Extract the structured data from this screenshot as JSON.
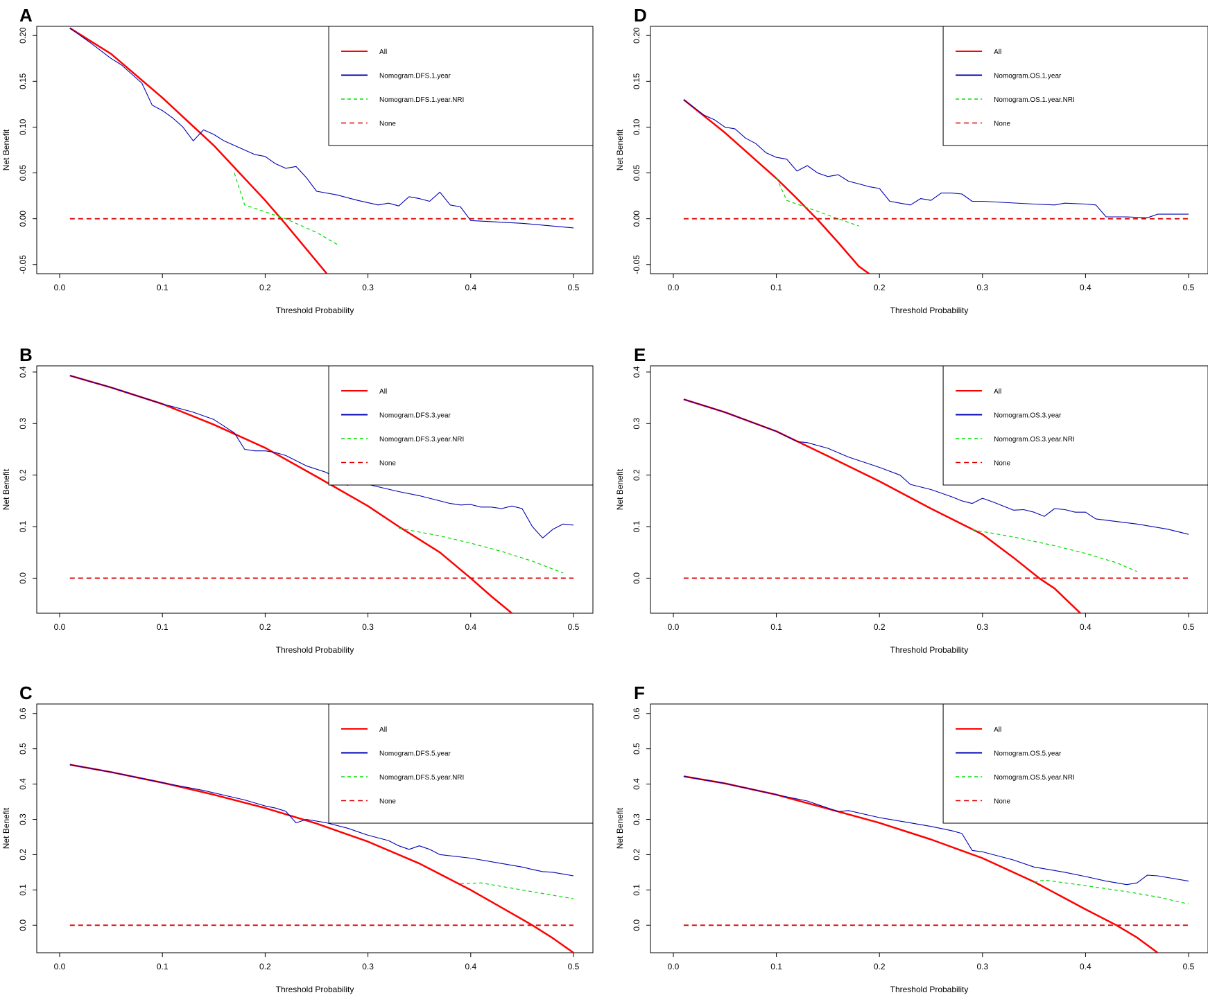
{
  "colors": {
    "all": "#ff0000",
    "model": "#0000b0",
    "nri": "#00dd00",
    "none": "#dd0000",
    "axis": "#000000"
  },
  "chart_data": [
    {
      "panel": "A",
      "type": "line",
      "xlabel": "Threshold Probability",
      "ylabel": "Net Benefit",
      "xlim": [
        0.0,
        0.5
      ],
      "ylim": [
        -0.06,
        0.21
      ],
      "xticks": [
        "0.0",
        "0.1",
        "0.2",
        "0.3",
        "0.4",
        "0.5"
      ],
      "yticks": [
        "-0.05",
        "0.00",
        "0.05",
        "0.10",
        "0.15",
        "0.20"
      ],
      "legend_position": "top-right",
      "series": [
        {
          "name": "All",
          "style": "all",
          "x": [
            0.01,
            0.05,
            0.1,
            0.15,
            0.2,
            0.22,
            0.24,
            0.26
          ],
          "y": [
            0.208,
            0.18,
            0.132,
            0.08,
            0.02,
            -0.006,
            -0.033,
            -0.06
          ]
        },
        {
          "name": "Nomogram.DFS.1.year",
          "style": "model",
          "x": [
            0.01,
            0.03,
            0.05,
            0.06,
            0.08,
            0.09,
            0.1,
            0.11,
            0.12,
            0.13,
            0.14,
            0.15,
            0.16,
            0.17,
            0.18,
            0.19,
            0.2,
            0.21,
            0.22,
            0.23,
            0.24,
            0.25,
            0.27,
            0.29,
            0.31,
            0.32,
            0.33,
            0.34,
            0.35,
            0.36,
            0.37,
            0.38,
            0.39,
            0.4,
            0.45,
            0.5
          ],
          "y": [
            0.208,
            0.192,
            0.175,
            0.168,
            0.148,
            0.124,
            0.118,
            0.11,
            0.1,
            0.085,
            0.097,
            0.092,
            0.085,
            0.08,
            0.075,
            0.07,
            0.068,
            0.06,
            0.055,
            0.057,
            0.045,
            0.03,
            0.026,
            0.02,
            0.015,
            0.017,
            0.014,
            0.024,
            0.022,
            0.019,
            0.029,
            0.015,
            0.013,
            -0.002,
            -0.005,
            -0.01
          ]
        },
        {
          "name": "Nomogram.DFS.1.year.NRI",
          "style": "nri",
          "x": [
            0.17,
            0.18,
            0.22,
            0.25,
            0.27
          ],
          "y": [
            0.05,
            0.015,
            0.0,
            -0.015,
            -0.028
          ]
        },
        {
          "name": "None",
          "style": "none",
          "x": [
            0.01,
            0.5
          ],
          "y": [
            0.0,
            0.0
          ]
        }
      ]
    },
    {
      "panel": "B",
      "type": "line",
      "xlabel": "Threshold Probability",
      "ylabel": "Net Benefit",
      "xlim": [
        0.0,
        0.5
      ],
      "ylim": [
        -0.068,
        0.412
      ],
      "xticks": [
        "0.0",
        "0.1",
        "0.2",
        "0.3",
        "0.4",
        "0.5"
      ],
      "yticks": [
        "0.0",
        "0.1",
        "0.2",
        "0.3",
        "0.4"
      ],
      "legend_position": "top-right",
      "series": [
        {
          "name": "All",
          "style": "all",
          "x": [
            0.01,
            0.05,
            0.1,
            0.15,
            0.2,
            0.25,
            0.3,
            0.33,
            0.35,
            0.37,
            0.4,
            0.42,
            0.44
          ],
          "y": [
            0.393,
            0.37,
            0.338,
            0.298,
            0.253,
            0.197,
            0.14,
            0.1,
            0.075,
            0.05,
            0.0,
            -0.035,
            -0.068
          ]
        },
        {
          "name": "Nomogram.DFS.3.year",
          "style": "model",
          "x": [
            0.01,
            0.05,
            0.1,
            0.11,
            0.13,
            0.15,
            0.17,
            0.18,
            0.19,
            0.2,
            0.21,
            0.22,
            0.24,
            0.26,
            0.27,
            0.28,
            0.29,
            0.3,
            0.33,
            0.35,
            0.37,
            0.38,
            0.39,
            0.4,
            0.41,
            0.42,
            0.43,
            0.44,
            0.45,
            0.46,
            0.47,
            0.48,
            0.49,
            0.5
          ],
          "y": [
            0.393,
            0.37,
            0.338,
            0.333,
            0.322,
            0.308,
            0.282,
            0.25,
            0.247,
            0.247,
            0.244,
            0.238,
            0.218,
            0.205,
            0.19,
            0.18,
            0.19,
            0.182,
            0.168,
            0.16,
            0.15,
            0.145,
            0.142,
            0.143,
            0.138,
            0.138,
            0.135,
            0.14,
            0.135,
            0.1,
            0.078,
            0.095,
            0.105,
            0.103
          ]
        },
        {
          "name": "Nomogram.DFS.3.year.NRI",
          "style": "nri",
          "x": [
            0.33,
            0.37,
            0.4,
            0.43,
            0.46,
            0.49
          ],
          "y": [
            0.097,
            0.082,
            0.068,
            0.052,
            0.033,
            0.01
          ]
        },
        {
          "name": "None",
          "style": "none",
          "x": [
            0.01,
            0.5
          ],
          "y": [
            0.0,
            0.0
          ]
        }
      ]
    },
    {
      "panel": "C",
      "type": "line",
      "xlabel": "Threshold Probability",
      "ylabel": "Net Benefit",
      "xlim": [
        0.0,
        0.5
      ],
      "ylim": [
        -0.078,
        0.627
      ],
      "xticks": [
        "0.0",
        "0.1",
        "0.2",
        "0.3",
        "0.4",
        "0.5"
      ],
      "yticks": [
        "0.0",
        "0.1",
        "0.2",
        "0.3",
        "0.4",
        "0.5",
        "0.6"
      ],
      "legend_position": "top-right",
      "series": [
        {
          "name": "All",
          "style": "all",
          "x": [
            0.01,
            0.05,
            0.1,
            0.15,
            0.2,
            0.25,
            0.3,
            0.35,
            0.4,
            0.43,
            0.46,
            0.48,
            0.5
          ],
          "y": [
            0.455,
            0.434,
            0.404,
            0.37,
            0.332,
            0.288,
            0.237,
            0.175,
            0.1,
            0.05,
            0.0,
            -0.037,
            -0.078
          ]
        },
        {
          "name": "Nomogram.DFS.5.year",
          "style": "model",
          "x": [
            0.01,
            0.05,
            0.1,
            0.14,
            0.18,
            0.2,
            0.21,
            0.22,
            0.23,
            0.24,
            0.26,
            0.28,
            0.3,
            0.32,
            0.33,
            0.34,
            0.35,
            0.36,
            0.37,
            0.4,
            0.43,
            0.45,
            0.46,
            0.47,
            0.48,
            0.49,
            0.5
          ],
          "y": [
            0.455,
            0.434,
            0.404,
            0.382,
            0.355,
            0.338,
            0.332,
            0.323,
            0.29,
            0.3,
            0.29,
            0.275,
            0.255,
            0.24,
            0.225,
            0.215,
            0.225,
            0.215,
            0.2,
            0.19,
            0.175,
            0.165,
            0.158,
            0.152,
            0.15,
            0.145,
            0.14
          ]
        },
        {
          "name": "Nomogram.DFS.5.year.NRI",
          "style": "nri",
          "x": [
            0.39,
            0.41,
            0.43,
            0.45,
            0.47,
            0.5
          ],
          "y": [
            0.118,
            0.12,
            0.11,
            0.1,
            0.09,
            0.075
          ]
        },
        {
          "name": "None",
          "style": "none",
          "x": [
            0.01,
            0.5
          ],
          "y": [
            0.0,
            0.0
          ]
        }
      ]
    },
    {
      "panel": "D",
      "type": "line",
      "xlabel": "Threshold Probability",
      "ylabel": "Net Benefit",
      "xlim": [
        0.0,
        0.5
      ],
      "ylim": [
        -0.06,
        0.21
      ],
      "xticks": [
        "0.0",
        "0.1",
        "0.2",
        "0.3",
        "0.4",
        "0.5"
      ],
      "yticks": [
        "-0.05",
        "0.00",
        "0.05",
        "0.10",
        "0.15",
        "0.20"
      ],
      "legend_position": "top-right",
      "series": [
        {
          "name": "All",
          "style": "all",
          "x": [
            0.01,
            0.05,
            0.1,
            0.12,
            0.14,
            0.16,
            0.18,
            0.19
          ],
          "y": [
            0.13,
            0.094,
            0.044,
            0.022,
            -0.001,
            -0.026,
            -0.052,
            -0.06
          ]
        },
        {
          "name": "Nomogram.OS.1.year",
          "style": "model",
          "x": [
            0.01,
            0.03,
            0.04,
            0.05,
            0.06,
            0.07,
            0.08,
            0.09,
            0.1,
            0.11,
            0.12,
            0.13,
            0.14,
            0.15,
            0.16,
            0.17,
            0.18,
            0.19,
            0.2,
            0.21,
            0.22,
            0.23,
            0.24,
            0.25,
            0.26,
            0.27,
            0.28,
            0.29,
            0.3,
            0.35,
            0.37,
            0.38,
            0.4,
            0.41,
            0.42,
            0.44,
            0.46,
            0.47,
            0.5
          ],
          "y": [
            0.13,
            0.113,
            0.108,
            0.1,
            0.098,
            0.088,
            0.082,
            0.072,
            0.067,
            0.065,
            0.052,
            0.058,
            0.05,
            0.046,
            0.048,
            0.041,
            0.038,
            0.035,
            0.033,
            0.019,
            0.017,
            0.015,
            0.022,
            0.02,
            0.028,
            0.028,
            0.027,
            0.019,
            0.019,
            0.016,
            0.015,
            0.017,
            0.016,
            0.015,
            0.002,
            0.002,
            0.001,
            0.005,
            0.005
          ]
        },
        {
          "name": "Nomogram.OS.1.year.NRI",
          "style": "nri",
          "x": [
            0.1,
            0.11,
            0.14,
            0.16,
            0.18
          ],
          "y": [
            0.045,
            0.02,
            0.008,
            0.0,
            -0.008
          ]
        },
        {
          "name": "None",
          "style": "none",
          "x": [
            0.01,
            0.5
          ],
          "y": [
            0.0,
            0.0
          ]
        }
      ]
    },
    {
      "panel": "E",
      "type": "line",
      "xlabel": "Threshold Probability",
      "ylabel": "Net Benefit",
      "xlim": [
        0.0,
        0.5
      ],
      "ylim": [
        -0.068,
        0.412
      ],
      "xticks": [
        "0.0",
        "0.1",
        "0.2",
        "0.3",
        "0.4",
        "0.5"
      ],
      "yticks": [
        "0.0",
        "0.1",
        "0.2",
        "0.3",
        "0.4"
      ],
      "legend_position": "top-right",
      "series": [
        {
          "name": "All",
          "style": "all",
          "x": [
            0.01,
            0.05,
            0.1,
            0.15,
            0.2,
            0.25,
            0.3,
            0.33,
            0.355,
            0.37,
            0.395
          ],
          "y": [
            0.347,
            0.322,
            0.285,
            0.237,
            0.188,
            0.135,
            0.085,
            0.04,
            0.0,
            -0.02,
            -0.068
          ]
        },
        {
          "name": "Nomogram.OS.3.year",
          "style": "model",
          "x": [
            0.01,
            0.05,
            0.1,
            0.12,
            0.13,
            0.15,
            0.17,
            0.2,
            0.22,
            0.23,
            0.25,
            0.27,
            0.28,
            0.29,
            0.3,
            0.31,
            0.32,
            0.33,
            0.34,
            0.35,
            0.36,
            0.37,
            0.38,
            0.39,
            0.4,
            0.41,
            0.45,
            0.48,
            0.5
          ],
          "y": [
            0.347,
            0.322,
            0.285,
            0.265,
            0.263,
            0.252,
            0.235,
            0.215,
            0.2,
            0.182,
            0.172,
            0.158,
            0.15,
            0.145,
            0.155,
            0.148,
            0.14,
            0.132,
            0.133,
            0.128,
            0.12,
            0.135,
            0.133,
            0.128,
            0.128,
            0.115,
            0.105,
            0.095,
            0.085
          ]
        },
        {
          "name": "Nomogram.OS.3.year.NRI",
          "style": "nri",
          "x": [
            0.29,
            0.33,
            0.37,
            0.4,
            0.43,
            0.45
          ],
          "y": [
            0.094,
            0.08,
            0.063,
            0.048,
            0.03,
            0.013
          ]
        },
        {
          "name": "None",
          "style": "none",
          "x": [
            0.01,
            0.5
          ],
          "y": [
            0.0,
            0.0
          ]
        }
      ]
    },
    {
      "panel": "F",
      "type": "line",
      "xlabel": "Threshold Probability",
      "ylabel": "Net Benefit",
      "xlim": [
        0.0,
        0.5
      ],
      "ylim": [
        -0.078,
        0.627
      ],
      "xticks": [
        "0.0",
        "0.1",
        "0.2",
        "0.3",
        "0.4",
        "0.5"
      ],
      "yticks": [
        "0.0",
        "0.1",
        "0.2",
        "0.3",
        "0.4",
        "0.5",
        "0.6"
      ],
      "legend_position": "top-right",
      "series": [
        {
          "name": "All",
          "style": "all",
          "x": [
            0.01,
            0.05,
            0.1,
            0.15,
            0.2,
            0.25,
            0.3,
            0.35,
            0.4,
            0.43,
            0.45,
            0.47
          ],
          "y": [
            0.422,
            0.402,
            0.37,
            0.33,
            0.29,
            0.243,
            0.19,
            0.123,
            0.045,
            0.0,
            -0.035,
            -0.078
          ]
        },
        {
          "name": "Nomogram.OS.5.year",
          "style": "model",
          "x": [
            0.01,
            0.05,
            0.1,
            0.13,
            0.16,
            0.17,
            0.2,
            0.23,
            0.25,
            0.27,
            0.28,
            0.29,
            0.3,
            0.33,
            0.35,
            0.36,
            0.38,
            0.4,
            0.42,
            0.44,
            0.45,
            0.46,
            0.47,
            0.5
          ],
          "y": [
            0.422,
            0.402,
            0.37,
            0.352,
            0.322,
            0.325,
            0.305,
            0.29,
            0.28,
            0.268,
            0.26,
            0.212,
            0.208,
            0.185,
            0.165,
            0.16,
            0.15,
            0.138,
            0.125,
            0.115,
            0.12,
            0.142,
            0.14,
            0.125
          ]
        },
        {
          "name": "Nomogram.OS.5.year.NRI",
          "style": "nri",
          "x": [
            0.35,
            0.36,
            0.4,
            0.44,
            0.47,
            0.5
          ],
          "y": [
            0.122,
            0.128,
            0.112,
            0.095,
            0.08,
            0.06
          ]
        },
        {
          "name": "None",
          "style": "none",
          "x": [
            0.01,
            0.5
          ],
          "y": [
            0.0,
            0.0
          ]
        }
      ]
    }
  ]
}
